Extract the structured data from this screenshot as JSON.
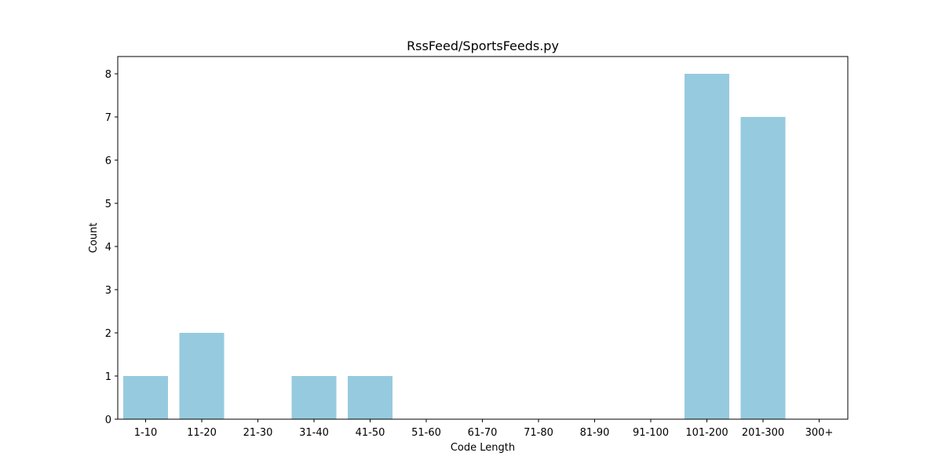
{
  "chart_data": {
    "type": "bar",
    "title": "RssFeed/SportsFeeds.py",
    "xlabel": "Code Length",
    "ylabel": "Count",
    "categories": [
      "1-10",
      "11-20",
      "21-30",
      "31-40",
      "41-50",
      "51-60",
      "61-70",
      "71-80",
      "81-90",
      "91-100",
      "101-200",
      "201-300",
      "300+"
    ],
    "values": [
      1,
      2,
      0,
      1,
      1,
      0,
      0,
      0,
      0,
      0,
      8,
      7,
      0
    ],
    "ylim": [
      0,
      8.4
    ],
    "yticks": [
      0,
      1,
      2,
      3,
      4,
      5,
      6,
      7,
      8
    ],
    "bar_color": "#96cadf",
    "grid": false,
    "legend": false
  }
}
